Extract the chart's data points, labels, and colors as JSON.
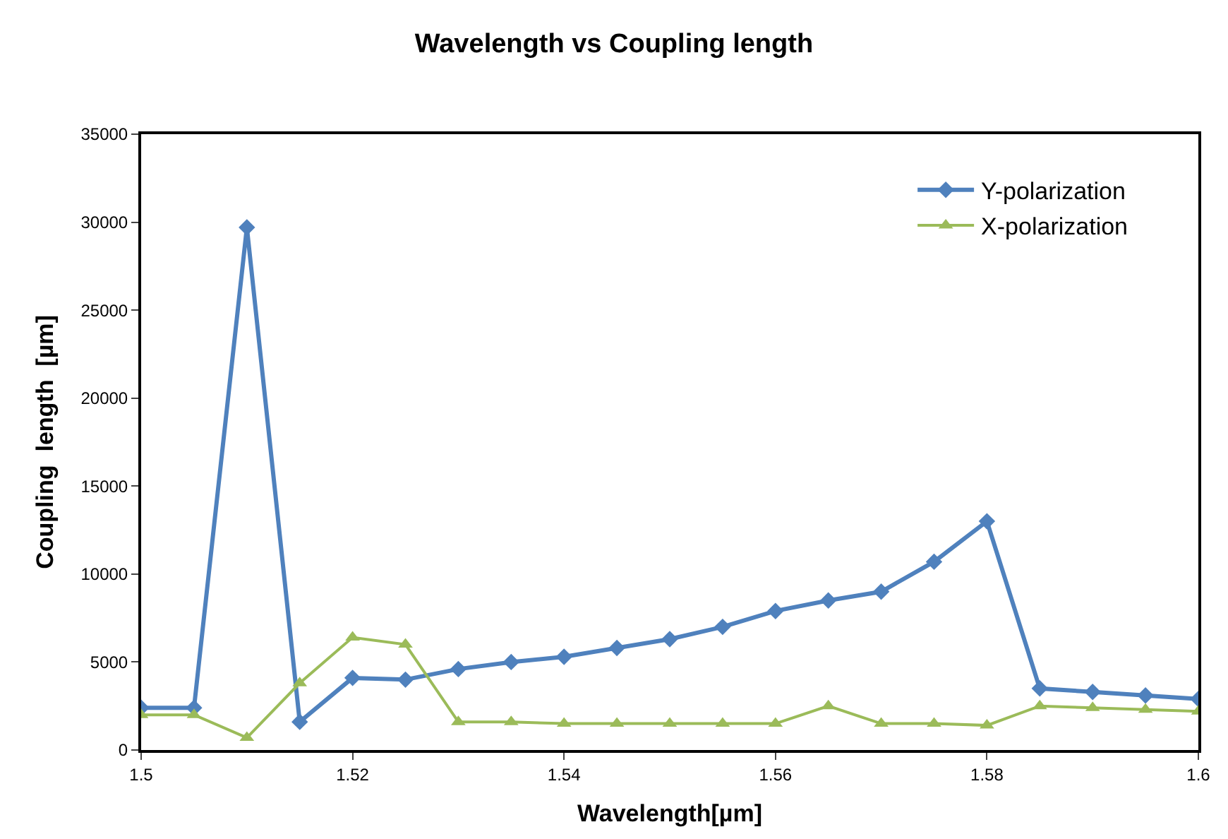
{
  "chart_data": {
    "type": "line",
    "title": "Wavelength vs Coupling length",
    "xlabel": "Wavelength[µm]",
    "ylabel": "Coupling  length  [µm]",
    "x": [
      1.5,
      1.505,
      1.51,
      1.515,
      1.52,
      1.525,
      1.53,
      1.535,
      1.54,
      1.545,
      1.55,
      1.555,
      1.56,
      1.565,
      1.57,
      1.575,
      1.58,
      1.585,
      1.59,
      1.595,
      1.6
    ],
    "series": [
      {
        "name": "Y-polarization",
        "color": "#4f81bd",
        "marker": "diamond",
        "values": [
          2400,
          2400,
          29700,
          1600,
          4100,
          4000,
          4600,
          5000,
          5300,
          5800,
          6300,
          7000,
          7900,
          8500,
          9000,
          10700,
          13000,
          3500,
          3300,
          3100,
          2900
        ]
      },
      {
        "name": "X-polarization",
        "color": "#9bbb59",
        "marker": "triangle",
        "values": [
          2000,
          2000,
          700,
          3800,
          6400,
          6000,
          1600,
          1600,
          1500,
          1500,
          1500,
          1500,
          1500,
          2500,
          1500,
          1500,
          1400,
          2500,
          2400,
          2300,
          2200
        ]
      }
    ],
    "xlim": [
      1.5,
      1.6
    ],
    "xticks": [
      1.5,
      1.52,
      1.54,
      1.56,
      1.58,
      1.6
    ],
    "ylim": [
      0,
      35000
    ],
    "yticks": [
      0,
      5000,
      10000,
      15000,
      20000,
      25000,
      30000,
      35000
    ],
    "legend": "top right",
    "line_style": "solid"
  }
}
